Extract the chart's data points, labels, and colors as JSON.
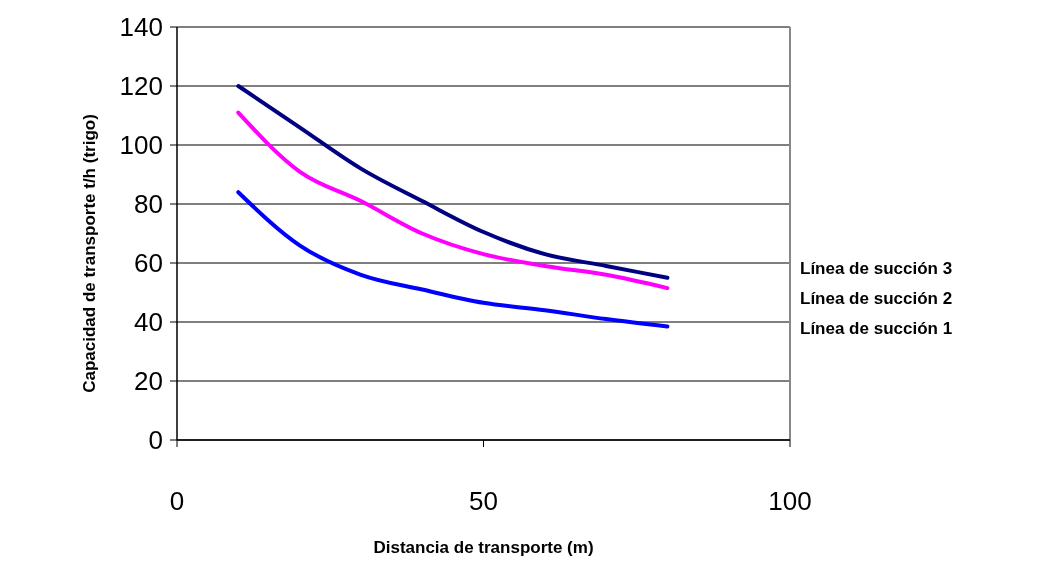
{
  "chart_data": {
    "type": "line",
    "xlabel": "Distancia de transporte (m)",
    "ylabel": "Capacidad de transporte  t/h (trigo)",
    "x": [
      10,
      20,
      30,
      40,
      50,
      60,
      70,
      80
    ],
    "xlim": [
      0,
      100
    ],
    "xticks": [
      0,
      50,
      100
    ],
    "ylim": [
      0,
      140
    ],
    "yticks": [
      0,
      20,
      40,
      60,
      80,
      100,
      120,
      140
    ],
    "grid": "y",
    "legend": "right",
    "series": [
      {
        "name": "Línea de succión 3",
        "color": "#000080",
        "values": [
          120,
          106,
          92,
          81,
          70.5,
          63,
          59,
          55
        ]
      },
      {
        "name": "Línea de succión 2",
        "color": "#ff00ff",
        "values": [
          111,
          91,
          81,
          70,
          63,
          59,
          56,
          51.5
        ]
      },
      {
        "name": "Línea de succión 1",
        "color": "#0000ff",
        "values": [
          84,
          66,
          56,
          51,
          46.5,
          44,
          41,
          38.5
        ]
      }
    ]
  }
}
